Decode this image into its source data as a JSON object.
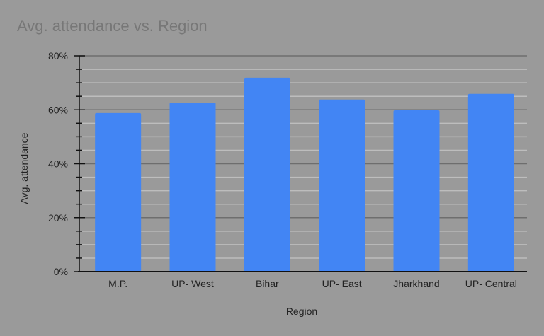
{
  "chart_data": {
    "type": "bar",
    "title": "Avg. attendance vs. Region",
    "xlabel": "Region",
    "ylabel": "Avg. attendance",
    "categories": [
      "M.P.",
      "UP- West",
      "Bihar",
      "UP- East",
      "Jharkhand",
      "UP- Central"
    ],
    "values": [
      58.8,
      62.7,
      71.9,
      63.8,
      59.8,
      65.9
    ],
    "value_format": "percent",
    "ylim": [
      0,
      80
    ],
    "y_ticks": [
      "0%",
      "20%",
      "40%",
      "60%",
      "80%"
    ],
    "y_tick_values": [
      0,
      20,
      40,
      60,
      80
    ],
    "minor_gridlines_every": 5,
    "grid": true,
    "legend": "none",
    "colors": {
      "bar": "#4285f4",
      "background": "#9a9a9a",
      "major_grid": "#6e6e6e",
      "minor_grid": "#bdbdbd",
      "title": "#777777"
    }
  }
}
